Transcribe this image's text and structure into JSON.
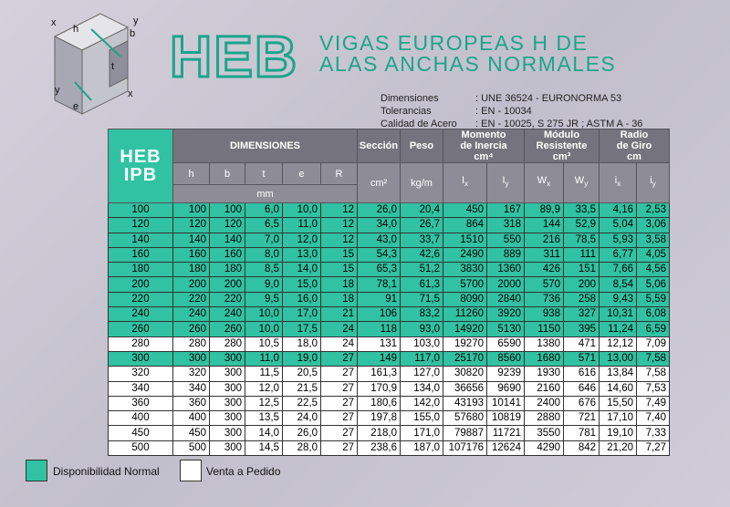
{
  "diagram": {
    "labels": [
      "x",
      "h",
      "y",
      "b",
      "t",
      "y",
      "e",
      "x"
    ]
  },
  "header": {
    "logo": "HEB",
    "title_line1": "VIGAS EUROPEAS H DE",
    "title_line2": "ALAS ANCHAS NORMALES"
  },
  "specs": [
    {
      "label": "Dimensiones",
      "value": ": UNE 36524 - EURONORMA 53"
    },
    {
      "label": "Tolerancias",
      "value": ": EN - 10034"
    },
    {
      "label": "Calidad de Acero",
      "value": ": EN - 10025, S 275 JR ; ASTM A - 36"
    }
  ],
  "table": {
    "head": {
      "profile": [
        "HEB",
        "IPB"
      ],
      "dimensions": "DIMENSIONES",
      "dims": [
        "h",
        "b",
        "t",
        "e",
        "R"
      ],
      "mm": "mm",
      "section": "Sección",
      "section_unit": "cm²",
      "weight": "Peso",
      "weight_unit": "kg/m",
      "inertia": [
        "Momento",
        "de Inercia",
        "cm⁴"
      ],
      "modulus": [
        "Módulo",
        "Resistente",
        "cm³"
      ],
      "radius": [
        "Radio",
        "de Giro",
        "cm"
      ],
      "symbols": [
        {
          "sym": "I",
          "sub": "x"
        },
        {
          "sym": "I",
          "sub": "y"
        },
        {
          "sym": "W",
          "sub": "x"
        },
        {
          "sym": "W",
          "sub": "y"
        },
        {
          "sym": "i",
          "sub": "x"
        },
        {
          "sym": "i",
          "sub": "y"
        }
      ]
    },
    "rows": [
      {
        "normal": true,
        "cells": [
          "100",
          "100",
          "100",
          "6,0",
          "10,0",
          "12",
          "26,0",
          "20,4",
          "450",
          "167",
          "89,9",
          "33,5",
          "4,16",
          "2,53"
        ]
      },
      {
        "normal": true,
        "cells": [
          "120",
          "120",
          "120",
          "6,5",
          "11,0",
          "12",
          "34,0",
          "26,7",
          "864",
          "318",
          "144",
          "52,9",
          "5,04",
          "3,06"
        ]
      },
      {
        "normal": true,
        "cells": [
          "140",
          "140",
          "140",
          "7,0",
          "12,0",
          "12",
          "43,0",
          "33,7",
          "1510",
          "550",
          "216",
          "78,5",
          "5,93",
          "3,58"
        ]
      },
      {
        "normal": true,
        "cells": [
          "160",
          "160",
          "160",
          "8,0",
          "13,0",
          "15",
          "54,3",
          "42,6",
          "2490",
          "889",
          "311",
          "111",
          "6,77",
          "4,05"
        ]
      },
      {
        "normal": true,
        "cells": [
          "180",
          "180",
          "180",
          "8,5",
          "14,0",
          "15",
          "65,3",
          "51,2",
          "3830",
          "1360",
          "426",
          "151",
          "7,66",
          "4,56"
        ]
      },
      {
        "normal": true,
        "cells": [
          "200",
          "200",
          "200",
          "9,0",
          "15,0",
          "18",
          "78,1",
          "61,3",
          "5700",
          "2000",
          "570",
          "200",
          "8,54",
          "5,06"
        ]
      },
      {
        "normal": true,
        "cells": [
          "220",
          "220",
          "220",
          "9,5",
          "16,0",
          "18",
          "91",
          "71,5",
          "8090",
          "2840",
          "736",
          "258",
          "9,43",
          "5,59"
        ]
      },
      {
        "normal": true,
        "cells": [
          "240",
          "240",
          "240",
          "10,0",
          "17,0",
          "21",
          "106",
          "83,2",
          "11260",
          "3920",
          "938",
          "327",
          "10,31",
          "6,08"
        ]
      },
      {
        "normal": true,
        "cells": [
          "260",
          "260",
          "260",
          "10,0",
          "17,5",
          "24",
          "118",
          "93,0",
          "14920",
          "5130",
          "1150",
          "395",
          "11,24",
          "6,59"
        ]
      },
      {
        "normal": false,
        "cells": [
          "280",
          "280",
          "280",
          "10,5",
          "18,0",
          "24",
          "131",
          "103,0",
          "19270",
          "6590",
          "1380",
          "471",
          "12,12",
          "7,09"
        ]
      },
      {
        "normal": true,
        "cells": [
          "300",
          "300",
          "300",
          "11,0",
          "19,0",
          "27",
          "149",
          "117,0",
          "25170",
          "8560",
          "1680",
          "571",
          "13,00",
          "7,58"
        ]
      },
      {
        "normal": false,
        "cells": [
          "320",
          "320",
          "300",
          "11,5",
          "20,5",
          "27",
          "161,3",
          "127,0",
          "30820",
          "9239",
          "1930",
          "616",
          "13,84",
          "7,58"
        ]
      },
      {
        "normal": false,
        "cells": [
          "340",
          "340",
          "300",
          "12,0",
          "21,5",
          "27",
          "170,9",
          "134,0",
          "36656",
          "9690",
          "2160",
          "646",
          "14,60",
          "7,53"
        ]
      },
      {
        "normal": false,
        "cells": [
          "360",
          "360",
          "300",
          "12,5",
          "22,5",
          "27",
          "180,6",
          "142,0",
          "43193",
          "10141",
          "2400",
          "676",
          "15,50",
          "7,49"
        ]
      },
      {
        "normal": false,
        "cells": [
          "400",
          "400",
          "300",
          "13,5",
          "24,0",
          "27",
          "197,8",
          "155,0",
          "57680",
          "10819",
          "2880",
          "721",
          "17,10",
          "7,40"
        ]
      },
      {
        "normal": false,
        "cells": [
          "450",
          "450",
          "300",
          "14,0",
          "26,0",
          "27",
          "218,0",
          "171,0",
          "79887",
          "11721",
          "3550",
          "781",
          "19,10",
          "7,33"
        ]
      },
      {
        "normal": false,
        "cells": [
          "500",
          "500",
          "300",
          "14,5",
          "28,0",
          "27",
          "238,6",
          "187,0",
          "107176",
          "12624",
          "4290",
          "842",
          "21,20",
          "7,27"
        ]
      }
    ]
  },
  "legend": {
    "normal": "Disponibilidad Normal",
    "order": "Venta a Pedido"
  }
}
